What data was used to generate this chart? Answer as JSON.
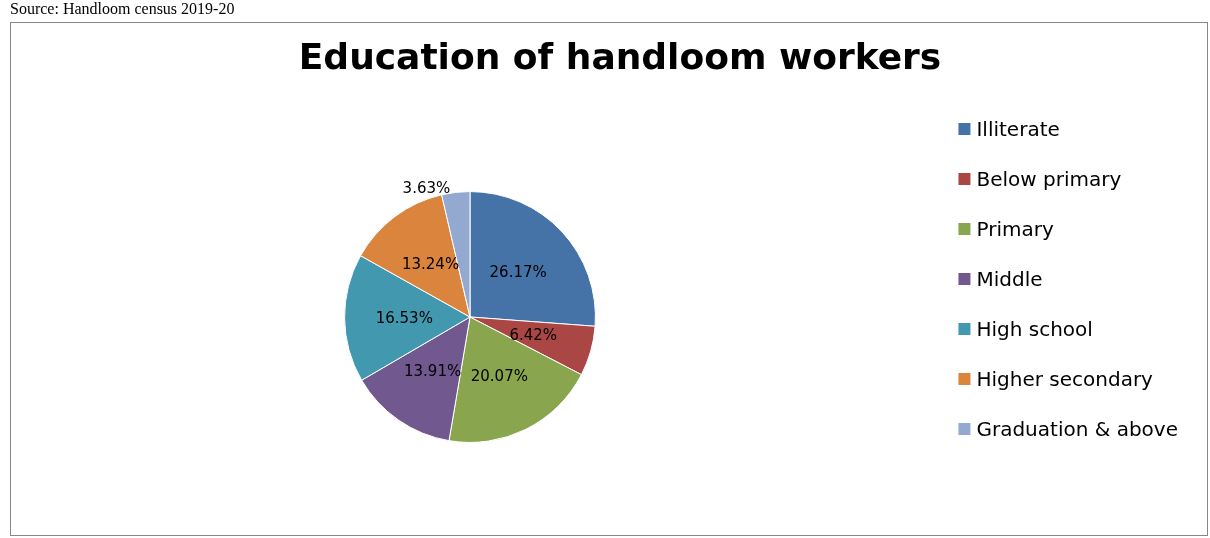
{
  "chart_data": {
    "type": "pie",
    "title": "Education of handloom workers",
    "categories": [
      "Illiterate",
      "Below primary",
      "Primary",
      "Middle",
      "High school",
      "Higher secondary",
      "Graduation & above"
    ],
    "values": [
      26.17,
      6.42,
      20.07,
      13.91,
      16.53,
      13.24,
      3.63
    ],
    "colors": [
      "#4572a7",
      "#aa4643",
      "#89a54e",
      "#71588f",
      "#4198af",
      "#db843d",
      "#93a9cf"
    ],
    "value_labels": [
      "26.17%",
      "6.42%",
      "20.07%",
      "13.91%",
      "16.53%",
      "13.24%",
      "3.63%"
    ],
    "legend": "right",
    "annotations": [
      "Source: Handloom census 2019-20"
    ]
  }
}
